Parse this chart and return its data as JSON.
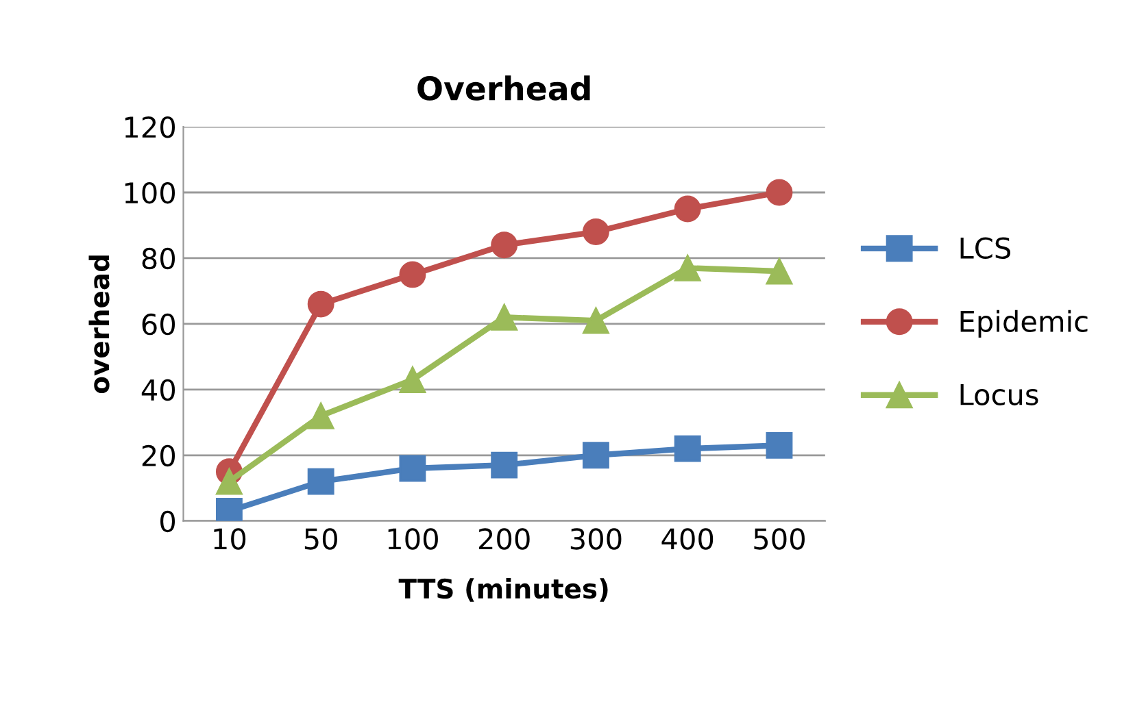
{
  "chart_data": {
    "type": "line",
    "title": "Overhead",
    "xlabel": "TTS (minutes)",
    "ylabel": "overhead",
    "categories": [
      "10",
      "50",
      "100",
      "200",
      "300",
      "400",
      "500"
    ],
    "series": [
      {
        "name": "LCS",
        "color": "#4a7ebb",
        "marker": "square",
        "values": [
          3,
          12,
          16,
          17,
          20,
          22,
          23
        ]
      },
      {
        "name": "Epidemic",
        "color": "#c0504d",
        "marker": "circle",
        "values": [
          15,
          66,
          75,
          84,
          88,
          95,
          100
        ]
      },
      {
        "name": "Locus",
        "color": "#9bbb59",
        "marker": "triangle",
        "values": [
          12,
          32,
          43,
          62,
          61,
          77,
          76
        ]
      }
    ],
    "ylim": [
      0,
      120
    ],
    "yticks": [
      0,
      20,
      40,
      60,
      80,
      100,
      120
    ],
    "grid": "y",
    "legend": "right",
    "line_style": "solid"
  }
}
